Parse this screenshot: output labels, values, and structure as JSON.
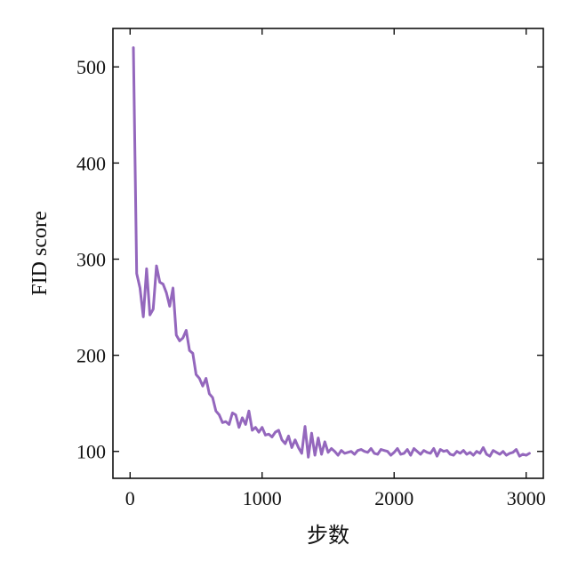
{
  "chart_data": {
    "type": "line",
    "title": "",
    "xlabel": "步数",
    "ylabel": "FID score",
    "xlim": [
      -130,
      3130
    ],
    "ylim": [
      72,
      540
    ],
    "xticks": [
      0,
      1000,
      2000,
      3000
    ],
    "yticks": [
      100,
      200,
      300,
      400,
      500
    ],
    "grid": false,
    "legend": "none",
    "series": [
      {
        "color": "#9467bd",
        "x": [
          25,
          50,
          75,
          100,
          125,
          150,
          175,
          200,
          225,
          250,
          275,
          300,
          325,
          350,
          375,
          400,
          425,
          450,
          475,
          500,
          525,
          550,
          575,
          600,
          625,
          650,
          675,
          700,
          725,
          750,
          775,
          800,
          825,
          850,
          875,
          900,
          925,
          950,
          975,
          1000,
          1025,
          1050,
          1075,
          1100,
          1125,
          1150,
          1175,
          1200,
          1225,
          1250,
          1275,
          1300,
          1325,
          1350,
          1375,
          1400,
          1425,
          1450,
          1475,
          1500,
          1525,
          1550,
          1575,
          1600,
          1625,
          1650,
          1675,
          1700,
          1725,
          1750,
          1775,
          1800,
          1825,
          1850,
          1875,
          1900,
          1925,
          1950,
          1975,
          2000,
          2025,
          2050,
          2075,
          2100,
          2125,
          2150,
          2175,
          2200,
          2225,
          2250,
          2275,
          2300,
          2325,
          2350,
          2375,
          2400,
          2425,
          2450,
          2475,
          2500,
          2525,
          2550,
          2575,
          2600,
          2625,
          2650,
          2675,
          2700,
          2725,
          2750,
          2775,
          2800,
          2825,
          2850,
          2875,
          2900,
          2925,
          2950,
          2975,
          3000,
          3025
        ],
        "y": [
          520,
          285,
          270,
          240,
          290,
          242,
          248,
          293,
          276,
          274,
          265,
          251,
          270,
          221,
          215,
          218,
          226,
          205,
          202,
          180,
          176,
          168,
          176,
          160,
          156,
          142,
          138,
          130,
          131,
          128,
          140,
          138,
          125,
          135,
          128,
          142,
          122,
          125,
          120,
          125,
          117,
          118,
          115,
          120,
          122,
          112,
          108,
          116,
          104,
          112,
          104,
          98,
          126,
          94,
          119,
          96,
          114,
          97,
          110,
          99,
          103,
          100,
          96,
          101,
          98,
          99,
          100,
          97,
          101,
          102,
          100,
          99,
          103,
          98,
          97,
          102,
          101,
          100,
          96,
          99,
          103,
          97,
          98,
          102,
          96,
          103,
          100,
          97,
          101,
          99,
          98,
          103,
          95,
          102,
          100,
          101,
          97,
          96,
          100,
          98,
          101,
          97,
          99,
          96,
          100,
          98,
          104,
          97,
          95,
          101,
          99,
          97,
          100,
          96,
          98,
          99,
          102,
          95,
          97,
          96,
          98
        ]
      }
    ]
  }
}
